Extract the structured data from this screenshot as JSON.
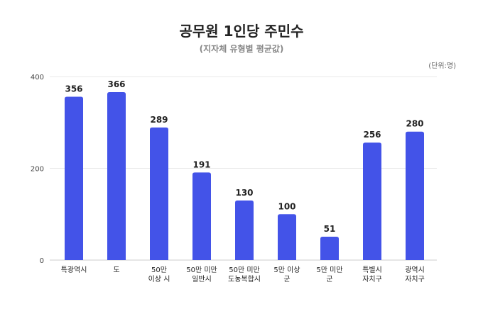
{
  "chart_data": {
    "type": "bar",
    "title": "공무원 1인당 주민수",
    "subtitle": "(지자체 유형별 평균값)",
    "unit": "(단위:명)",
    "categories": [
      [
        "특광역시"
      ],
      [
        "도"
      ],
      [
        "50만",
        "이상 시"
      ],
      [
        "50만 미만",
        "일반시"
      ],
      [
        "50만 미만",
        "도농복합시"
      ],
      [
        "5만 이상",
        "군"
      ],
      [
        "5만 미만",
        "군"
      ],
      [
        "특별시",
        "자치구"
      ],
      [
        "광역시",
        "자치구"
      ]
    ],
    "values": [
      356,
      366,
      289,
      191,
      130,
      100,
      51,
      256,
      280
    ],
    "yticks": [
      0,
      200,
      400
    ],
    "ylim": [
      0,
      400
    ],
    "xlabel": "",
    "ylabel": "",
    "grid": true,
    "bar_color": "#4353E8"
  }
}
